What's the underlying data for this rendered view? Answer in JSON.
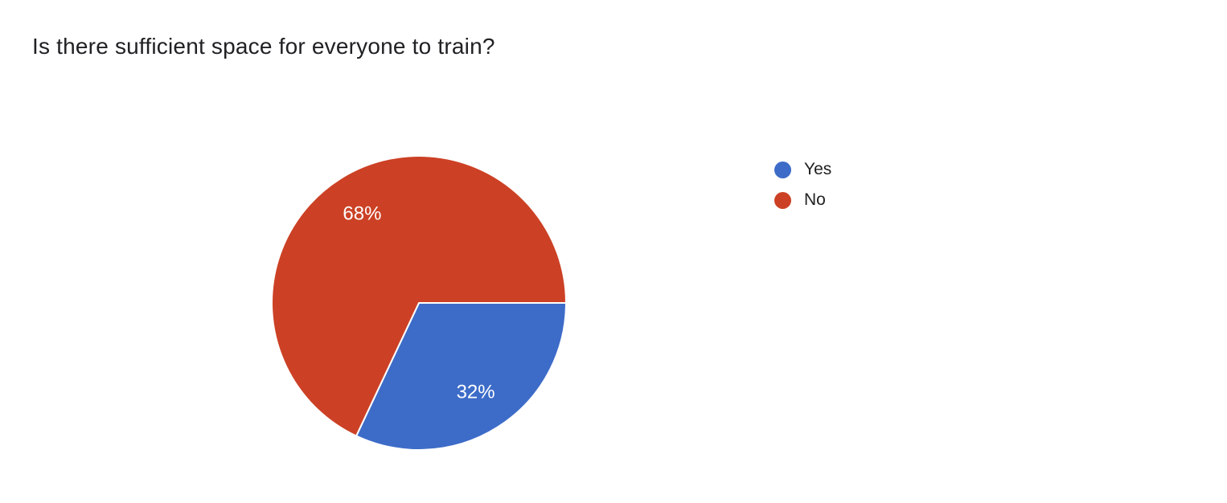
{
  "title": {
    "text": "Is there sufficient space for everyone to train?"
  },
  "chart_data": {
    "type": "pie",
    "title": "Is there sufficient space for everyone to train?",
    "categories": [
      "Yes",
      "No"
    ],
    "values": [
      32,
      68
    ],
    "unit": "%",
    "slice_labels": [
      "32%",
      "68%"
    ],
    "colors": [
      "#3D6CC8",
      "#CC4125"
    ],
    "start_angle_deg": 0,
    "direction": "clockwise",
    "legend_position": "right",
    "slice_label_color": "#FFFFFF",
    "slice_border_color": "#FFFFFF"
  },
  "legend": {
    "items": [
      {
        "label": "Yes",
        "color": "#3D6CC8"
      },
      {
        "label": "No",
        "color": "#CC4125"
      }
    ]
  },
  "colors": {
    "background": "#FFFFFF",
    "title_text": "#202124",
    "legend_text": "#212121"
  }
}
